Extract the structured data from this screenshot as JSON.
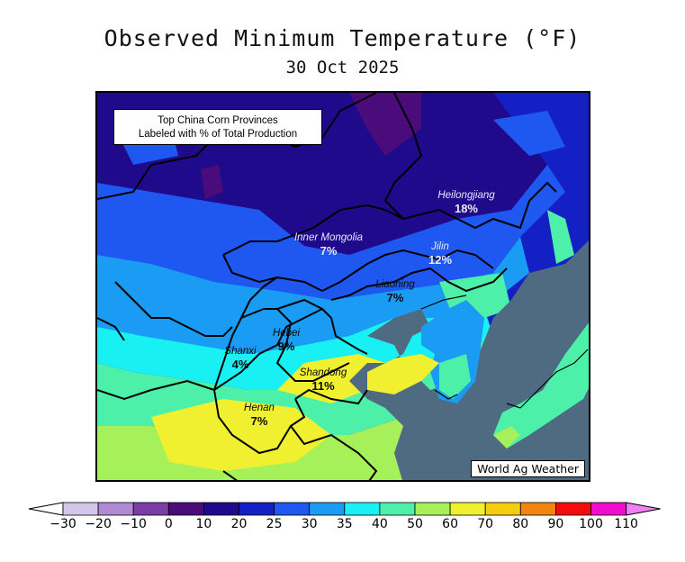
{
  "title": "Observed Minimum Temperature (°F)",
  "date": "30 Oct 2025",
  "info_box": {
    "line1": "Top China Corn Provinces",
    "line2": "Labeled with % of Total Production"
  },
  "provinces": [
    {
      "name": "Heilongjiang",
      "pct": "18%"
    },
    {
      "name": "Jilin",
      "pct": "12%"
    },
    {
      "name": "Inner Mongolia",
      "pct": "7%"
    },
    {
      "name": "Liaoning",
      "pct": "7%"
    },
    {
      "name": "Hebei",
      "pct": "9%"
    },
    {
      "name": "Shanxi",
      "pct": "4%"
    },
    {
      "name": "Shandong",
      "pct": "11%"
    },
    {
      "name": "Henan",
      "pct": "7%"
    }
  ],
  "watermark": "World Ag Weather",
  "colorbar": {
    "ticks": [
      "-30",
      "-20",
      "-10",
      "0",
      "10",
      "20",
      "25",
      "30",
      "35",
      "40",
      "50",
      "60",
      "70",
      "80",
      "90",
      "100",
      "110"
    ],
    "colors": [
      "#d4c6e8",
      "#b08ad2",
      "#7a3ea6",
      "#4a0c7a",
      "#200a8c",
      "#1420c4",
      "#1e58f0",
      "#1a9cf4",
      "#18f0f4",
      "#4cf0a8",
      "#a6f05a",
      "#f0f030",
      "#f4ce0c",
      "#f48410",
      "#f40c0c",
      "#f00ccc"
    ],
    "under_color": "#ffffff",
    "over_color": "#f080f0"
  }
}
